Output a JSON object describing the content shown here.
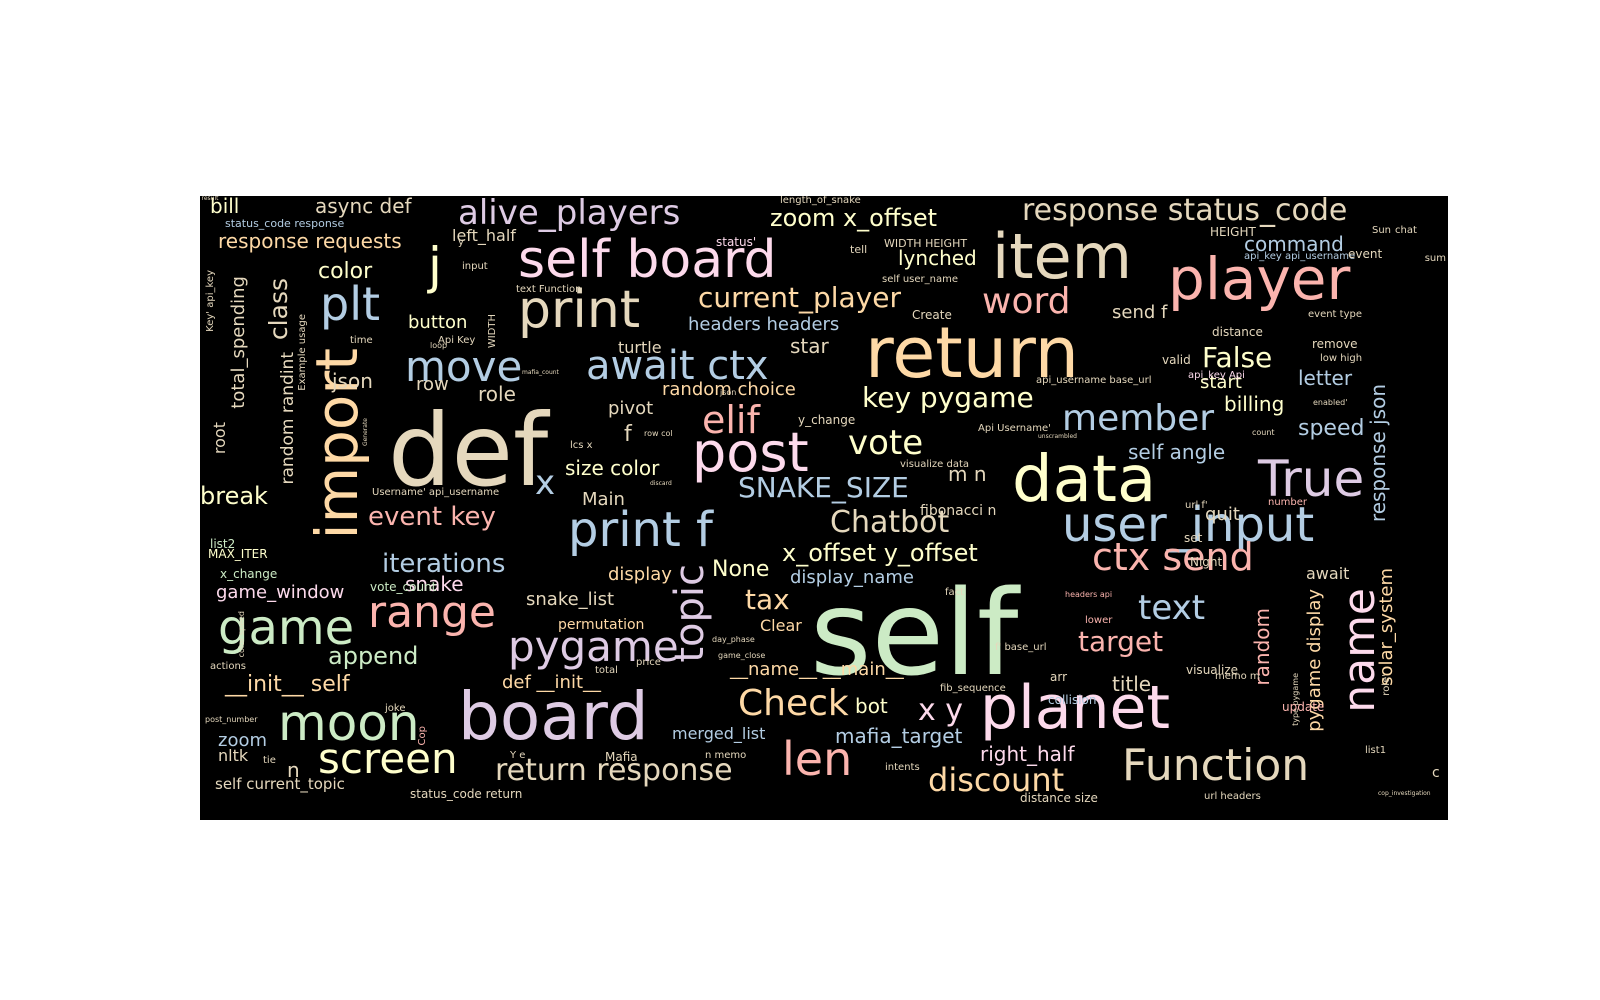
{
  "wordcloud": {
    "background": "#000000",
    "palette": [
      "#fbb4ae",
      "#b3cde3",
      "#ccebc5",
      "#decbe4",
      "#fed9a6",
      "#ffffcc",
      "#e5d8bd",
      "#fddaec"
    ],
    "words": [
      {
        "text": "self",
        "color": "#ccebc5"
      },
      {
        "text": "def",
        "color": "#e5d8bd"
      },
      {
        "text": "return",
        "color": "#fed9a6"
      },
      {
        "text": "board",
        "color": "#decbe4"
      },
      {
        "text": "planet",
        "color": "#fddaec"
      },
      {
        "text": "data",
        "color": "#ffffcc"
      },
      {
        "text": "item",
        "color": "#e5d8bd"
      },
      {
        "text": "player",
        "color": "#fbb4ae"
      },
      {
        "text": "self board",
        "color": "#fddaec"
      },
      {
        "text": "import",
        "color": "#fed9a6"
      },
      {
        "text": "print",
        "color": "#e5d8bd"
      },
      {
        "text": "post",
        "color": "#fddaec"
      },
      {
        "text": "True",
        "color": "#decbe4"
      },
      {
        "text": "user_input",
        "color": "#b3cde3"
      },
      {
        "text": "print f",
        "color": "#b3cde3"
      },
      {
        "text": "game",
        "color": "#ccebc5"
      },
      {
        "text": "range",
        "color": "#fbb4ae"
      },
      {
        "text": "moon",
        "color": "#ccebc5"
      },
      {
        "text": "pygame",
        "color": "#decbe4"
      },
      {
        "text": "topic",
        "color": "#decbe4"
      },
      {
        "text": "name",
        "color": "#fddaec"
      },
      {
        "text": "screen",
        "color": "#ffffcc"
      },
      {
        "text": "Function",
        "color": "#e5d8bd"
      },
      {
        "text": "len",
        "color": "#fbb4ae"
      },
      {
        "text": "alive_players",
        "color": "#decbe4"
      },
      {
        "text": "response status_code",
        "color": "#e5d8bd"
      },
      {
        "text": "plt",
        "color": "#b3cde3"
      },
      {
        "text": "await ctx",
        "color": "#b3cde3"
      },
      {
        "text": "move",
        "color": "#b3cde3"
      },
      {
        "text": "ctx send",
        "color": "#fbb4ae"
      },
      {
        "text": "word",
        "color": "#fbb4ae"
      },
      {
        "text": "member",
        "color": "#b3cde3"
      },
      {
        "text": "Check",
        "color": "#fed9a6"
      },
      {
        "text": "vote",
        "color": "#ffffcc"
      },
      {
        "text": "elif",
        "color": "#fbb4ae"
      },
      {
        "text": "text",
        "color": "#b3cde3"
      },
      {
        "text": "discount",
        "color": "#fed9a6"
      },
      {
        "text": "return response",
        "color": "#e5d8bd"
      },
      {
        "text": "current_player",
        "color": "#fed9a6"
      },
      {
        "text": "key pygame",
        "color": "#ffffcc"
      },
      {
        "text": "j",
        "color": "#ffffcc"
      },
      {
        "text": "x",
        "color": "#b3cde3"
      },
      {
        "text": "x y",
        "color": "#fddaec"
      },
      {
        "text": "Chatbot",
        "color": "#e5d8bd"
      },
      {
        "text": "tax",
        "color": "#fed9a6"
      },
      {
        "text": "target",
        "color": "#fbb4ae"
      },
      {
        "text": "False",
        "color": "#ffffcc"
      },
      {
        "text": "SNAKE_SIZE",
        "color": "#b3cde3"
      },
      {
        "text": "event key",
        "color": "#fbb4ae"
      },
      {
        "text": "iterations",
        "color": "#b3cde3"
      },
      {
        "text": "append",
        "color": "#ccebc5"
      },
      {
        "text": "__init__ self",
        "color": "#fed9a6"
      },
      {
        "text": "x_offset y_offset",
        "color": "#ffffcc"
      },
      {
        "text": "zoom x_offset",
        "color": "#ffffcc"
      },
      {
        "text": "class",
        "color": "#e5d8bd"
      },
      {
        "text": "response requests",
        "color": "#fed9a6"
      },
      {
        "text": "async def",
        "color": "#e5d8bd"
      },
      {
        "text": "bill",
        "color": "#ffffcc"
      },
      {
        "text": "color",
        "color": "#ffffcc"
      },
      {
        "text": "button",
        "color": "#ffffcc"
      },
      {
        "text": "headers headers",
        "color": "#b3cde3"
      },
      {
        "text": "command",
        "color": "#b3cde3"
      },
      {
        "text": "lynched",
        "color": "#ffffcc"
      },
      {
        "text": "send f",
        "color": "#e5d8bd"
      },
      {
        "text": "star",
        "color": "#e5d8bd"
      },
      {
        "text": "random choice",
        "color": "#fed9a6"
      },
      {
        "text": "json",
        "color": "#e5d8bd"
      },
      {
        "text": "row",
        "color": "#e5d8bd"
      },
      {
        "text": "role",
        "color": "#e5d8bd"
      },
      {
        "text": "pivot",
        "color": "#e5d8bd"
      },
      {
        "text": "start",
        "color": "#ffffcc"
      },
      {
        "text": "billing",
        "color": "#ffffcc"
      },
      {
        "text": "letter",
        "color": "#b3cde3"
      },
      {
        "text": "speed",
        "color": "#b3cde3"
      },
      {
        "text": "self angle",
        "color": "#b3cde3"
      },
      {
        "text": "response json",
        "color": "#b3cde3"
      },
      {
        "text": "break",
        "color": "#ffffcc"
      },
      {
        "text": "size color",
        "color": "#ffffcc"
      },
      {
        "text": "Main",
        "color": "#e5d8bd"
      },
      {
        "text": "quit",
        "color": "#e5d8bd"
      },
      {
        "text": "None",
        "color": "#ffffcc"
      },
      {
        "text": "display_name",
        "color": "#b3cde3"
      },
      {
        "text": "display",
        "color": "#fed9a6"
      },
      {
        "text": "snake",
        "color": "#fddaec"
      },
      {
        "text": "snake_list",
        "color": "#e5d8bd"
      },
      {
        "text": "permutation",
        "color": "#fed9a6"
      },
      {
        "text": "Clear",
        "color": "#fed9a6"
      },
      {
        "text": "game_window",
        "color": "#fddaec"
      },
      {
        "text": "def __init__",
        "color": "#fed9a6"
      },
      {
        "text": "__name__ __main__",
        "color": "#fed9a6"
      },
      {
        "text": "bot",
        "color": "#ffffcc"
      },
      {
        "text": "mafia_target",
        "color": "#b3cde3"
      },
      {
        "text": "right_half",
        "color": "#fddaec"
      },
      {
        "text": "title",
        "color": "#e5d8bd"
      },
      {
        "text": "random",
        "color": "#fbb4ae"
      },
      {
        "text": "solar_system",
        "color": "#fed9a6"
      },
      {
        "text": "pygame display",
        "color": "#fed9a6"
      },
      {
        "text": "await",
        "color": "#e5d8bd"
      },
      {
        "text": "zoom",
        "color": "#b3cde3"
      },
      {
        "text": "nltk",
        "color": "#e5d8bd"
      },
      {
        "text": "merged_list",
        "color": "#b3cde3"
      },
      {
        "text": "total_spending",
        "color": "#e5d8bd"
      },
      {
        "text": "random randint",
        "color": "#e5d8bd"
      },
      {
        "text": "root",
        "color": "#e5d8bd"
      },
      {
        "text": "left_half",
        "color": "#e5d8bd"
      },
      {
        "text": "self current_topic",
        "color": "#e5d8bd"
      },
      {
        "text": "turtle",
        "color": "#e5d8bd"
      },
      {
        "text": "m n",
        "color": "#e5d8bd"
      },
      {
        "text": "f",
        "color": "#e5d8bd"
      },
      {
        "text": "n",
        "color": "#e5d8bd"
      },
      {
        "text": "MAX_ITER",
        "color": "#ffffcc"
      },
      {
        "text": "x_change",
        "color": "#ccebc5"
      },
      {
        "text": "vote_count",
        "color": "#ccebc5"
      },
      {
        "text": "list2",
        "color": "#ccebc5"
      },
      {
        "text": "status_code response",
        "color": "#b3cde3"
      },
      {
        "text": "status_code return",
        "color": "#e5d8bd"
      },
      {
        "text": "WIDTH HEIGHT",
        "color": "#e5d8bd"
      },
      {
        "text": "HEIGHT",
        "color": "#e5d8bd"
      },
      {
        "text": "length_of_snake",
        "color": "#e5d8bd"
      },
      {
        "text": "status'",
        "color": "#fddaec"
      },
      {
        "text": "tell",
        "color": "#e5d8bd"
      },
      {
        "text": "input",
        "color": "#e5d8bd"
      },
      {
        "text": "text Function",
        "color": "#e5d8bd"
      },
      {
        "text": "self user_name",
        "color": "#e5d8bd"
      },
      {
        "text": "Create",
        "color": "#e5d8bd"
      },
      {
        "text": "api_key api_username",
        "color": "#b3cde3"
      },
      {
        "text": "event",
        "color": "#e5d8bd"
      },
      {
        "text": "Sun",
        "color": "#e5d8bd"
      },
      {
        "text": "chat",
        "color": "#e5d8bd"
      },
      {
        "text": "event type",
        "color": "#e5d8bd"
      },
      {
        "text": "distance",
        "color": "#e5d8bd"
      },
      {
        "text": "remove",
        "color": "#e5d8bd"
      },
      {
        "text": "low high",
        "color": "#e5d8bd"
      },
      {
        "text": "valid",
        "color": "#e5d8bd"
      },
      {
        "text": "api_username base_url",
        "color": "#e5d8bd"
      },
      {
        "text": "api_key Api",
        "color": "#fddaec"
      },
      {
        "text": "enabled'",
        "color": "#e5d8bd"
      },
      {
        "text": "time",
        "color": "#e5d8bd"
      },
      {
        "text": "WIDTH",
        "color": "#e5d8bd"
      },
      {
        "text": "Api Key",
        "color": "#e5d8bd"
      },
      {
        "text": "Example usage",
        "color": "#e5d8bd"
      },
      {
        "text": "Key' api_key",
        "color": "#e5d8bd"
      },
      {
        "text": "loop",
        "color": "#e5d8bd"
      },
      {
        "text": "mafia_count",
        "color": "#e5d8bd"
      },
      {
        "text": "lcs x",
        "color": "#e5d8bd"
      },
      {
        "text": "row col",
        "color": "#e5d8bd"
      },
      {
        "text": "json",
        "color": "#e5d8bd"
      },
      {
        "text": "y_change",
        "color": "#e5d8bd"
      },
      {
        "text": "Api Username'",
        "color": "#e5d8bd"
      },
      {
        "text": "unscrambled",
        "color": "#e5d8bd"
      },
      {
        "text": "count",
        "color": "#e5d8bd"
      },
      {
        "text": "visualize data",
        "color": "#e5d8bd"
      },
      {
        "text": "discard",
        "color": "#e5d8bd"
      },
      {
        "text": "Username' api_username",
        "color": "#e5d8bd"
      },
      {
        "text": "url f'",
        "color": "#e5d8bd"
      },
      {
        "text": "number",
        "color": "#fbb4ae"
      },
      {
        "text": "set",
        "color": "#e5d8bd"
      },
      {
        "text": "Night",
        "color": "#e5d8bd"
      },
      {
        "text": "fibonacci n",
        "color": "#e5d8bd"
      },
      {
        "text": "fact",
        "color": "#e5d8bd"
      },
      {
        "text": "lower",
        "color": "#fbb4ae"
      },
      {
        "text": "day_phase",
        "color": "#e5d8bd"
      },
      {
        "text": "game_close",
        "color": "#e5d8bd"
      },
      {
        "text": "price",
        "color": "#e5d8bd"
      },
      {
        "text": "total",
        "color": "#e5d8bd"
      },
      {
        "text": "actions",
        "color": "#e5d8bd"
      },
      {
        "text": "result",
        "color": "#e5d8bd"
      },
      {
        "text": "f' base_url",
        "color": "#e5d8bd"
      },
      {
        "text": "arr",
        "color": "#e5d8bd"
      },
      {
        "text": "visualize",
        "color": "#e5d8bd"
      },
      {
        "text": "memo m",
        "color": "#e5d8bd"
      },
      {
        "text": "fib_sequence",
        "color": "#e5d8bd"
      },
      {
        "text": "collision",
        "color": "#b3cde3"
      },
      {
        "text": "type pygame",
        "color": "#e5d8bd"
      },
      {
        "text": "role'",
        "color": "#e5d8bd"
      },
      {
        "text": "update",
        "color": "#fbb4ae"
      },
      {
        "text": "joke",
        "color": "#e5d8bd"
      },
      {
        "text": "post_number",
        "color": "#e5d8bd"
      },
      {
        "text": "Cop",
        "color": "#fbb4ae"
      },
      {
        "text": "tie",
        "color": "#e5d8bd"
      },
      {
        "text": "Y e",
        "color": "#e5d8bd"
      },
      {
        "text": "Mafia",
        "color": "#e5d8bd"
      },
      {
        "text": "n memo",
        "color": "#e5d8bd"
      },
      {
        "text": "intents",
        "color": "#e5d8bd"
      },
      {
        "text": "distance size",
        "color": "#e5d8bd"
      },
      {
        "text": "url headers",
        "color": "#e5d8bd"
      },
      {
        "text": "list1",
        "color": "#e5d8bd"
      },
      {
        "text": "cop_investigation",
        "color": "#e5d8bd"
      },
      {
        "text": "headers api",
        "color": "#fbb4ae"
      },
      {
        "text": "c",
        "color": "#e5d8bd"
      },
      {
        "text": "color speed",
        "color": "#e5d8bd"
      },
      {
        "text": "Generate",
        "color": "#e5d8bd"
      },
      {
        "text": "y",
        "color": "#e5d8bd"
      },
      {
        "text": "sum",
        "color": "#e5d8bd"
      }
    ]
  }
}
